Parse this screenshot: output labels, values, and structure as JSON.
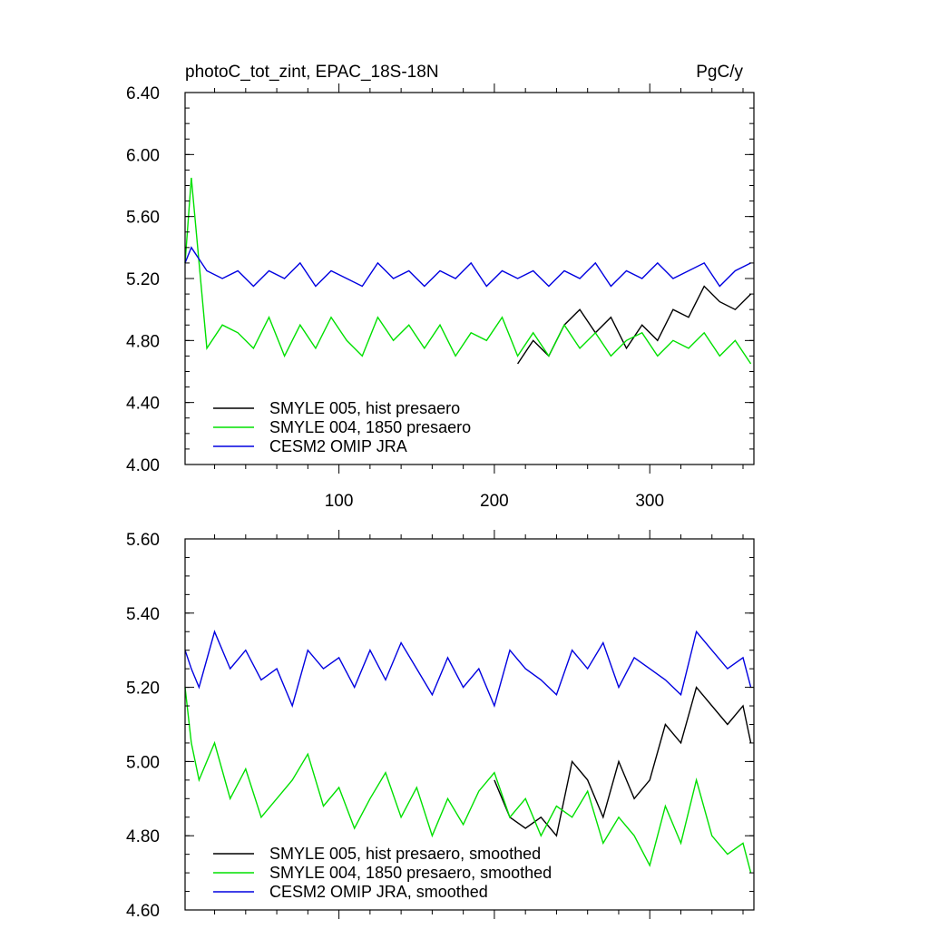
{
  "title_left": "photoC_tot_zint, EPAC_18S-18N",
  "title_right": "PgC/y",
  "colors": {
    "black": "#000000",
    "green": "#00e000",
    "blue": "#0000e0"
  },
  "chart_data": [
    {
      "type": "line",
      "xlim": [
        1,
        367
      ],
      "ylim": [
        4.0,
        6.4
      ],
      "x_ticks": [
        100,
        200,
        300
      ],
      "x_tick_labels": [
        "100",
        "200",
        "300"
      ],
      "y_ticks": [
        4.0,
        4.4,
        4.8,
        5.2,
        5.6,
        6.0,
        6.4
      ],
      "y_tick_labels": [
        "4.00",
        "4.40",
        "4.80",
        "5.20",
        "5.60",
        "6.00",
        "6.40"
      ],
      "legend_position": "bottom-left",
      "series": [
        {
          "name": "SMYLE 005, hist presaero",
          "color": "#000000",
          "x": [
            215,
            225,
            235,
            245,
            255,
            265,
            275,
            285,
            295,
            305,
            315,
            325,
            335,
            345,
            355,
            365
          ],
          "y": [
            4.65,
            4.8,
            4.7,
            4.9,
            5.0,
            4.85,
            4.95,
            4.75,
            4.9,
            4.8,
            5.0,
            4.95,
            5.15,
            5.05,
            5.0,
            5.1
          ]
        },
        {
          "name": "SMYLE 004, 1850 presaero",
          "color": "#00e000",
          "x": [
            1,
            5,
            15,
            25,
            35,
            45,
            55,
            65,
            75,
            85,
            95,
            105,
            115,
            125,
            135,
            145,
            155,
            165,
            175,
            185,
            195,
            205,
            215,
            225,
            235,
            245,
            255,
            265,
            275,
            285,
            295,
            305,
            315,
            325,
            335,
            345,
            355,
            365
          ],
          "y": [
            5.3,
            5.85,
            4.75,
            4.9,
            4.85,
            4.75,
            4.95,
            4.7,
            4.9,
            4.75,
            4.95,
            4.8,
            4.7,
            4.95,
            4.8,
            4.9,
            4.75,
            4.9,
            4.7,
            4.85,
            4.8,
            4.95,
            4.7,
            4.85,
            4.7,
            4.9,
            4.75,
            4.85,
            4.7,
            4.8,
            4.85,
            4.7,
            4.8,
            4.75,
            4.85,
            4.7,
            4.8,
            4.65
          ]
        },
        {
          "name": "CESM2 OMIP JRA",
          "color": "#0000e0",
          "x": [
            1,
            5,
            15,
            25,
            35,
            45,
            55,
            65,
            75,
            85,
            95,
            105,
            115,
            125,
            135,
            145,
            155,
            165,
            175,
            185,
            195,
            205,
            215,
            225,
            235,
            245,
            255,
            265,
            275,
            285,
            295,
            305,
            315,
            325,
            335,
            345,
            355,
            365
          ],
          "y": [
            5.3,
            5.4,
            5.25,
            5.2,
            5.25,
            5.15,
            5.25,
            5.2,
            5.3,
            5.15,
            5.25,
            5.2,
            5.15,
            5.3,
            5.2,
            5.25,
            5.15,
            5.25,
            5.2,
            5.3,
            5.15,
            5.25,
            5.2,
            5.25,
            5.15,
            5.25,
            5.2,
            5.3,
            5.15,
            5.25,
            5.2,
            5.3,
            5.2,
            5.25,
            5.3,
            5.15,
            5.25,
            5.3
          ]
        }
      ]
    },
    {
      "type": "line",
      "xlim": [
        1,
        367
      ],
      "ylim": [
        4.6,
        5.6
      ],
      "x_ticks": [
        100,
        200,
        300
      ],
      "x_tick_labels": [],
      "y_ticks": [
        4.6,
        4.8,
        5.0,
        5.2,
        5.4,
        5.6
      ],
      "y_tick_labels": [
        "4.60",
        "4.80",
        "5.00",
        "5.20",
        "5.40",
        "5.60"
      ],
      "legend_position": "bottom-left",
      "series": [
        {
          "name": "SMYLE 005, hist presaero, smoothed",
          "color": "#000000",
          "x": [
            200,
            210,
            220,
            230,
            240,
            250,
            260,
            270,
            280,
            290,
            300,
            310,
            320,
            330,
            340,
            350,
            360,
            365
          ],
          "y": [
            4.95,
            4.85,
            4.82,
            4.85,
            4.8,
            5.0,
            4.95,
            4.85,
            5.0,
            4.9,
            4.95,
            5.1,
            5.05,
            5.2,
            5.15,
            5.1,
            5.15,
            5.05
          ]
        },
        {
          "name": "SMYLE 004, 1850 presaero, smoothed",
          "color": "#00e000",
          "x": [
            1,
            5,
            10,
            20,
            30,
            40,
            50,
            60,
            70,
            80,
            90,
            100,
            110,
            120,
            130,
            140,
            150,
            160,
            170,
            180,
            190,
            200,
            210,
            220,
            230,
            240,
            250,
            260,
            270,
            280,
            290,
            300,
            310,
            320,
            330,
            340,
            350,
            360,
            365
          ],
          "y": [
            5.2,
            5.05,
            4.95,
            5.05,
            4.9,
            4.98,
            4.85,
            4.9,
            4.95,
            5.02,
            4.88,
            4.93,
            4.82,
            4.9,
            4.97,
            4.85,
            4.93,
            4.8,
            4.9,
            4.83,
            4.92,
            4.97,
            4.85,
            4.9,
            4.8,
            4.88,
            4.85,
            4.92,
            4.78,
            4.85,
            4.8,
            4.72,
            4.88,
            4.78,
            4.95,
            4.8,
            4.75,
            4.78,
            4.7
          ]
        },
        {
          "name": "CESM2 OMIP JRA, smoothed",
          "color": "#0000e0",
          "x": [
            1,
            5,
            10,
            20,
            30,
            40,
            50,
            60,
            70,
            80,
            90,
            100,
            110,
            120,
            130,
            140,
            150,
            160,
            170,
            180,
            190,
            200,
            210,
            220,
            230,
            240,
            250,
            260,
            270,
            280,
            290,
            300,
            310,
            320,
            330,
            340,
            350,
            360,
            365
          ],
          "y": [
            5.3,
            5.25,
            5.2,
            5.35,
            5.25,
            5.3,
            5.22,
            5.25,
            5.15,
            5.3,
            5.25,
            5.28,
            5.2,
            5.3,
            5.22,
            5.32,
            5.25,
            5.18,
            5.28,
            5.2,
            5.25,
            5.15,
            5.3,
            5.25,
            5.22,
            5.18,
            5.3,
            5.25,
            5.32,
            5.2,
            5.28,
            5.25,
            5.22,
            5.18,
            5.35,
            5.3,
            5.25,
            5.28,
            5.2
          ]
        }
      ]
    }
  ]
}
